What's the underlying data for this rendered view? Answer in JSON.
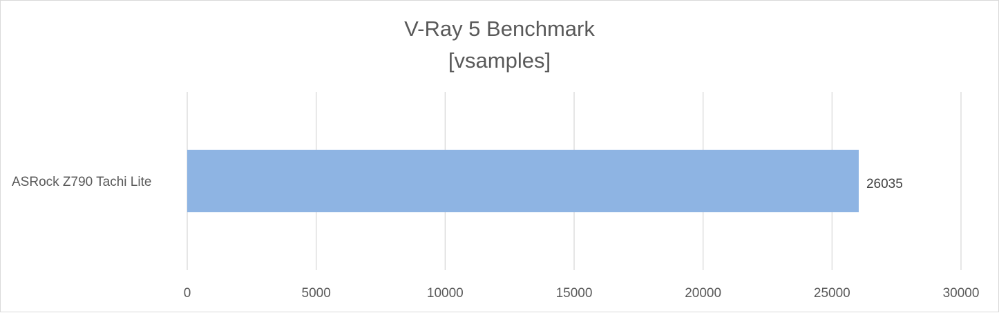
{
  "chart_data": {
    "type": "bar",
    "orientation": "horizontal",
    "title": "V-Ray 5 Benchmark",
    "subtitle": "[vsamples]",
    "categories": [
      "ASRock Z790 Tachi Lite"
    ],
    "values": [
      26035
    ],
    "data_labels": [
      "26035"
    ],
    "xlim": [
      0,
      30000
    ],
    "xticks": [
      0,
      5000,
      10000,
      15000,
      20000,
      25000,
      30000
    ],
    "xtick_labels": [
      "0",
      "5000",
      "10000",
      "15000",
      "20000",
      "25000",
      "30000"
    ],
    "grid": true,
    "legend": "none",
    "bar_color": "#8eb4e3",
    "grid_color": "#d9d9d9",
    "text_color": "#595959"
  }
}
